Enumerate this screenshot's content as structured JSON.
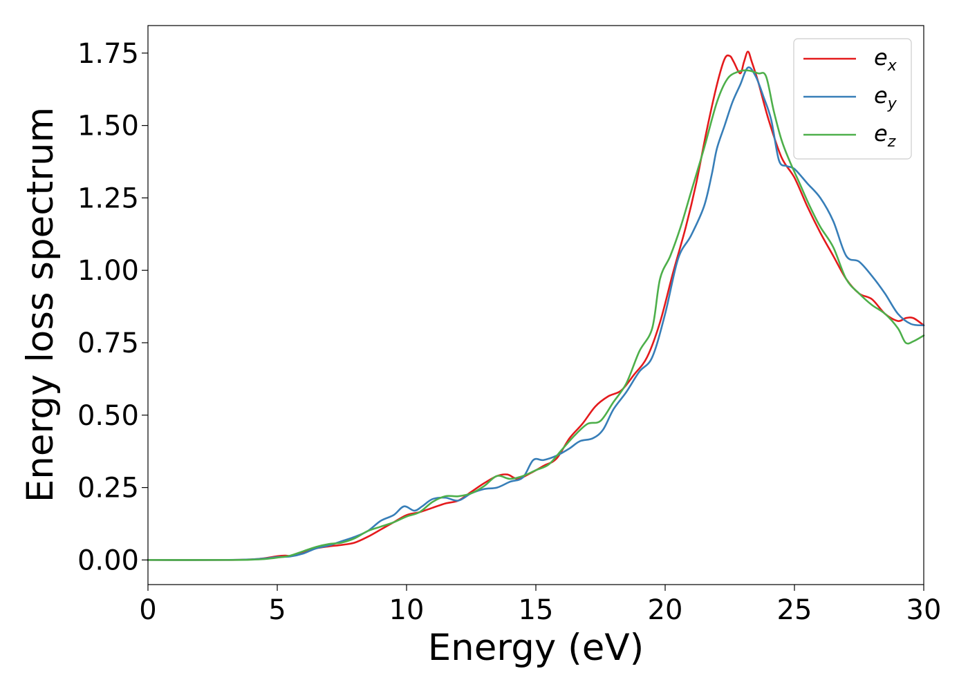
{
  "chart_data": {
    "type": "line",
    "xlabel": "Energy (eV)",
    "ylabel": "Energy loss spectrum",
    "xlim": [
      0,
      30
    ],
    "ylim": [
      -0.085,
      1.845
    ],
    "xticks": [
      0,
      5,
      10,
      15,
      20,
      25,
      30
    ],
    "xtick_labels": [
      "0",
      "5",
      "10",
      "15",
      "20",
      "25",
      "30"
    ],
    "yticks": [
      0,
      0.25,
      0.5,
      0.75,
      1.0,
      1.25,
      1.5,
      1.75
    ],
    "ytick_labels": [
      "0.00",
      "0.25",
      "0.50",
      "0.75",
      "1.00",
      "1.25",
      "1.50",
      "1.75"
    ],
    "grid": false,
    "legend_position": "top-right",
    "series": [
      {
        "name": "e_x",
        "label_main": "e",
        "label_sub": "x",
        "color": "#e41a1c",
        "x": [
          0,
          3,
          4,
          4.5,
          5,
          5.3,
          5.6,
          6,
          6.5,
          7,
          7.5,
          8,
          8.5,
          9,
          9.5,
          10,
          10.5,
          11,
          11.5,
          12,
          12.5,
          13,
          13.5,
          13.9,
          14.3,
          14.8,
          15.3,
          15.8,
          16.3,
          16.8,
          17.3,
          17.8,
          18.3,
          18.8,
          19.3,
          19.8,
          20.3,
          20.8,
          21.2,
          21.6,
          22,
          22.3,
          22.5,
          22.65,
          22.9,
          23.05,
          23.2,
          23.35,
          23.6,
          24,
          24.5,
          25,
          25.5,
          26,
          26.5,
          27,
          27.5,
          28,
          28.5,
          29,
          29.3,
          29.6,
          30
        ],
        "y": [
          0.0,
          0.0,
          0.002,
          0.006,
          0.013,
          0.015,
          0.014,
          0.025,
          0.04,
          0.047,
          0.052,
          0.06,
          0.08,
          0.105,
          0.13,
          0.155,
          0.165,
          0.18,
          0.195,
          0.205,
          0.235,
          0.265,
          0.29,
          0.295,
          0.28,
          0.3,
          0.325,
          0.35,
          0.42,
          0.47,
          0.53,
          0.565,
          0.585,
          0.64,
          0.7,
          0.82,
          0.99,
          1.15,
          1.3,
          1.48,
          1.64,
          1.73,
          1.74,
          1.72,
          1.68,
          1.72,
          1.755,
          1.72,
          1.65,
          1.52,
          1.39,
          1.32,
          1.22,
          1.13,
          1.05,
          0.97,
          0.92,
          0.9,
          0.85,
          0.825,
          0.835,
          0.835,
          0.81
        ]
      },
      {
        "name": "e_y",
        "label_main": "e",
        "label_sub": "y",
        "color": "#377eb8",
        "x": [
          0,
          3,
          4,
          4.5,
          5,
          5.5,
          6,
          6.5,
          7,
          7.5,
          8,
          8.5,
          9,
          9.5,
          9.9,
          10.3,
          10.6,
          11,
          11.5,
          12,
          12.5,
          13,
          13.5,
          14,
          14.5,
          14.9,
          15.3,
          15.8,
          16.3,
          16.7,
          17.2,
          17.6,
          18,
          18.5,
          19,
          19.5,
          20,
          20.5,
          21,
          21.5,
          21.8,
          22,
          22.3,
          22.6,
          22.9,
          23.2,
          23.5,
          23.8,
          24.1,
          24.4,
          24.7,
          25,
          25.5,
          26,
          26.5,
          27,
          27.5,
          28,
          28.5,
          29,
          29.5,
          30
        ],
        "y": [
          0.0,
          0.0,
          0.002,
          0.005,
          0.01,
          0.012,
          0.022,
          0.04,
          0.05,
          0.065,
          0.08,
          0.1,
          0.135,
          0.155,
          0.185,
          0.17,
          0.185,
          0.21,
          0.215,
          0.205,
          0.23,
          0.245,
          0.25,
          0.27,
          0.285,
          0.345,
          0.345,
          0.36,
          0.385,
          0.41,
          0.42,
          0.45,
          0.52,
          0.58,
          0.65,
          0.7,
          0.85,
          1.04,
          1.12,
          1.22,
          1.33,
          1.42,
          1.5,
          1.58,
          1.64,
          1.7,
          1.67,
          1.6,
          1.52,
          1.38,
          1.36,
          1.35,
          1.3,
          1.25,
          1.17,
          1.05,
          1.03,
          0.98,
          0.92,
          0.85,
          0.815,
          0.81
        ]
      },
      {
        "name": "e_z",
        "label_main": "e",
        "label_sub": "z",
        "color": "#4daf4a",
        "x": [
          0,
          3,
          4,
          4.5,
          5,
          5.5,
          6,
          6.5,
          7,
          7.5,
          8,
          8.5,
          9,
          9.5,
          10,
          10.5,
          11,
          11.5,
          12,
          12.5,
          13,
          13.5,
          14,
          14.5,
          15,
          15.5,
          16,
          16.5,
          17,
          17.5,
          18,
          18.5,
          19,
          19.5,
          19.8,
          20.2,
          20.6,
          21,
          21.5,
          22,
          22.4,
          22.8,
          23.2,
          23.6,
          23.9,
          24.2,
          24.5,
          24.8,
          25.2,
          25.6,
          26,
          26.5,
          27,
          27.5,
          28,
          28.5,
          29,
          29.3,
          29.6,
          30
        ],
        "y": [
          0.0,
          0.0,
          0.001,
          0.003,
          0.008,
          0.015,
          0.03,
          0.045,
          0.055,
          0.06,
          0.075,
          0.1,
          0.115,
          0.13,
          0.15,
          0.165,
          0.2,
          0.22,
          0.22,
          0.23,
          0.255,
          0.29,
          0.28,
          0.29,
          0.31,
          0.33,
          0.38,
          0.43,
          0.47,
          0.48,
          0.545,
          0.61,
          0.72,
          0.8,
          0.97,
          1.05,
          1.15,
          1.27,
          1.42,
          1.58,
          1.66,
          1.685,
          1.69,
          1.68,
          1.67,
          1.55,
          1.45,
          1.38,
          1.3,
          1.22,
          1.15,
          1.08,
          0.97,
          0.92,
          0.88,
          0.85,
          0.8,
          0.75,
          0.755,
          0.775
        ]
      }
    ]
  }
}
